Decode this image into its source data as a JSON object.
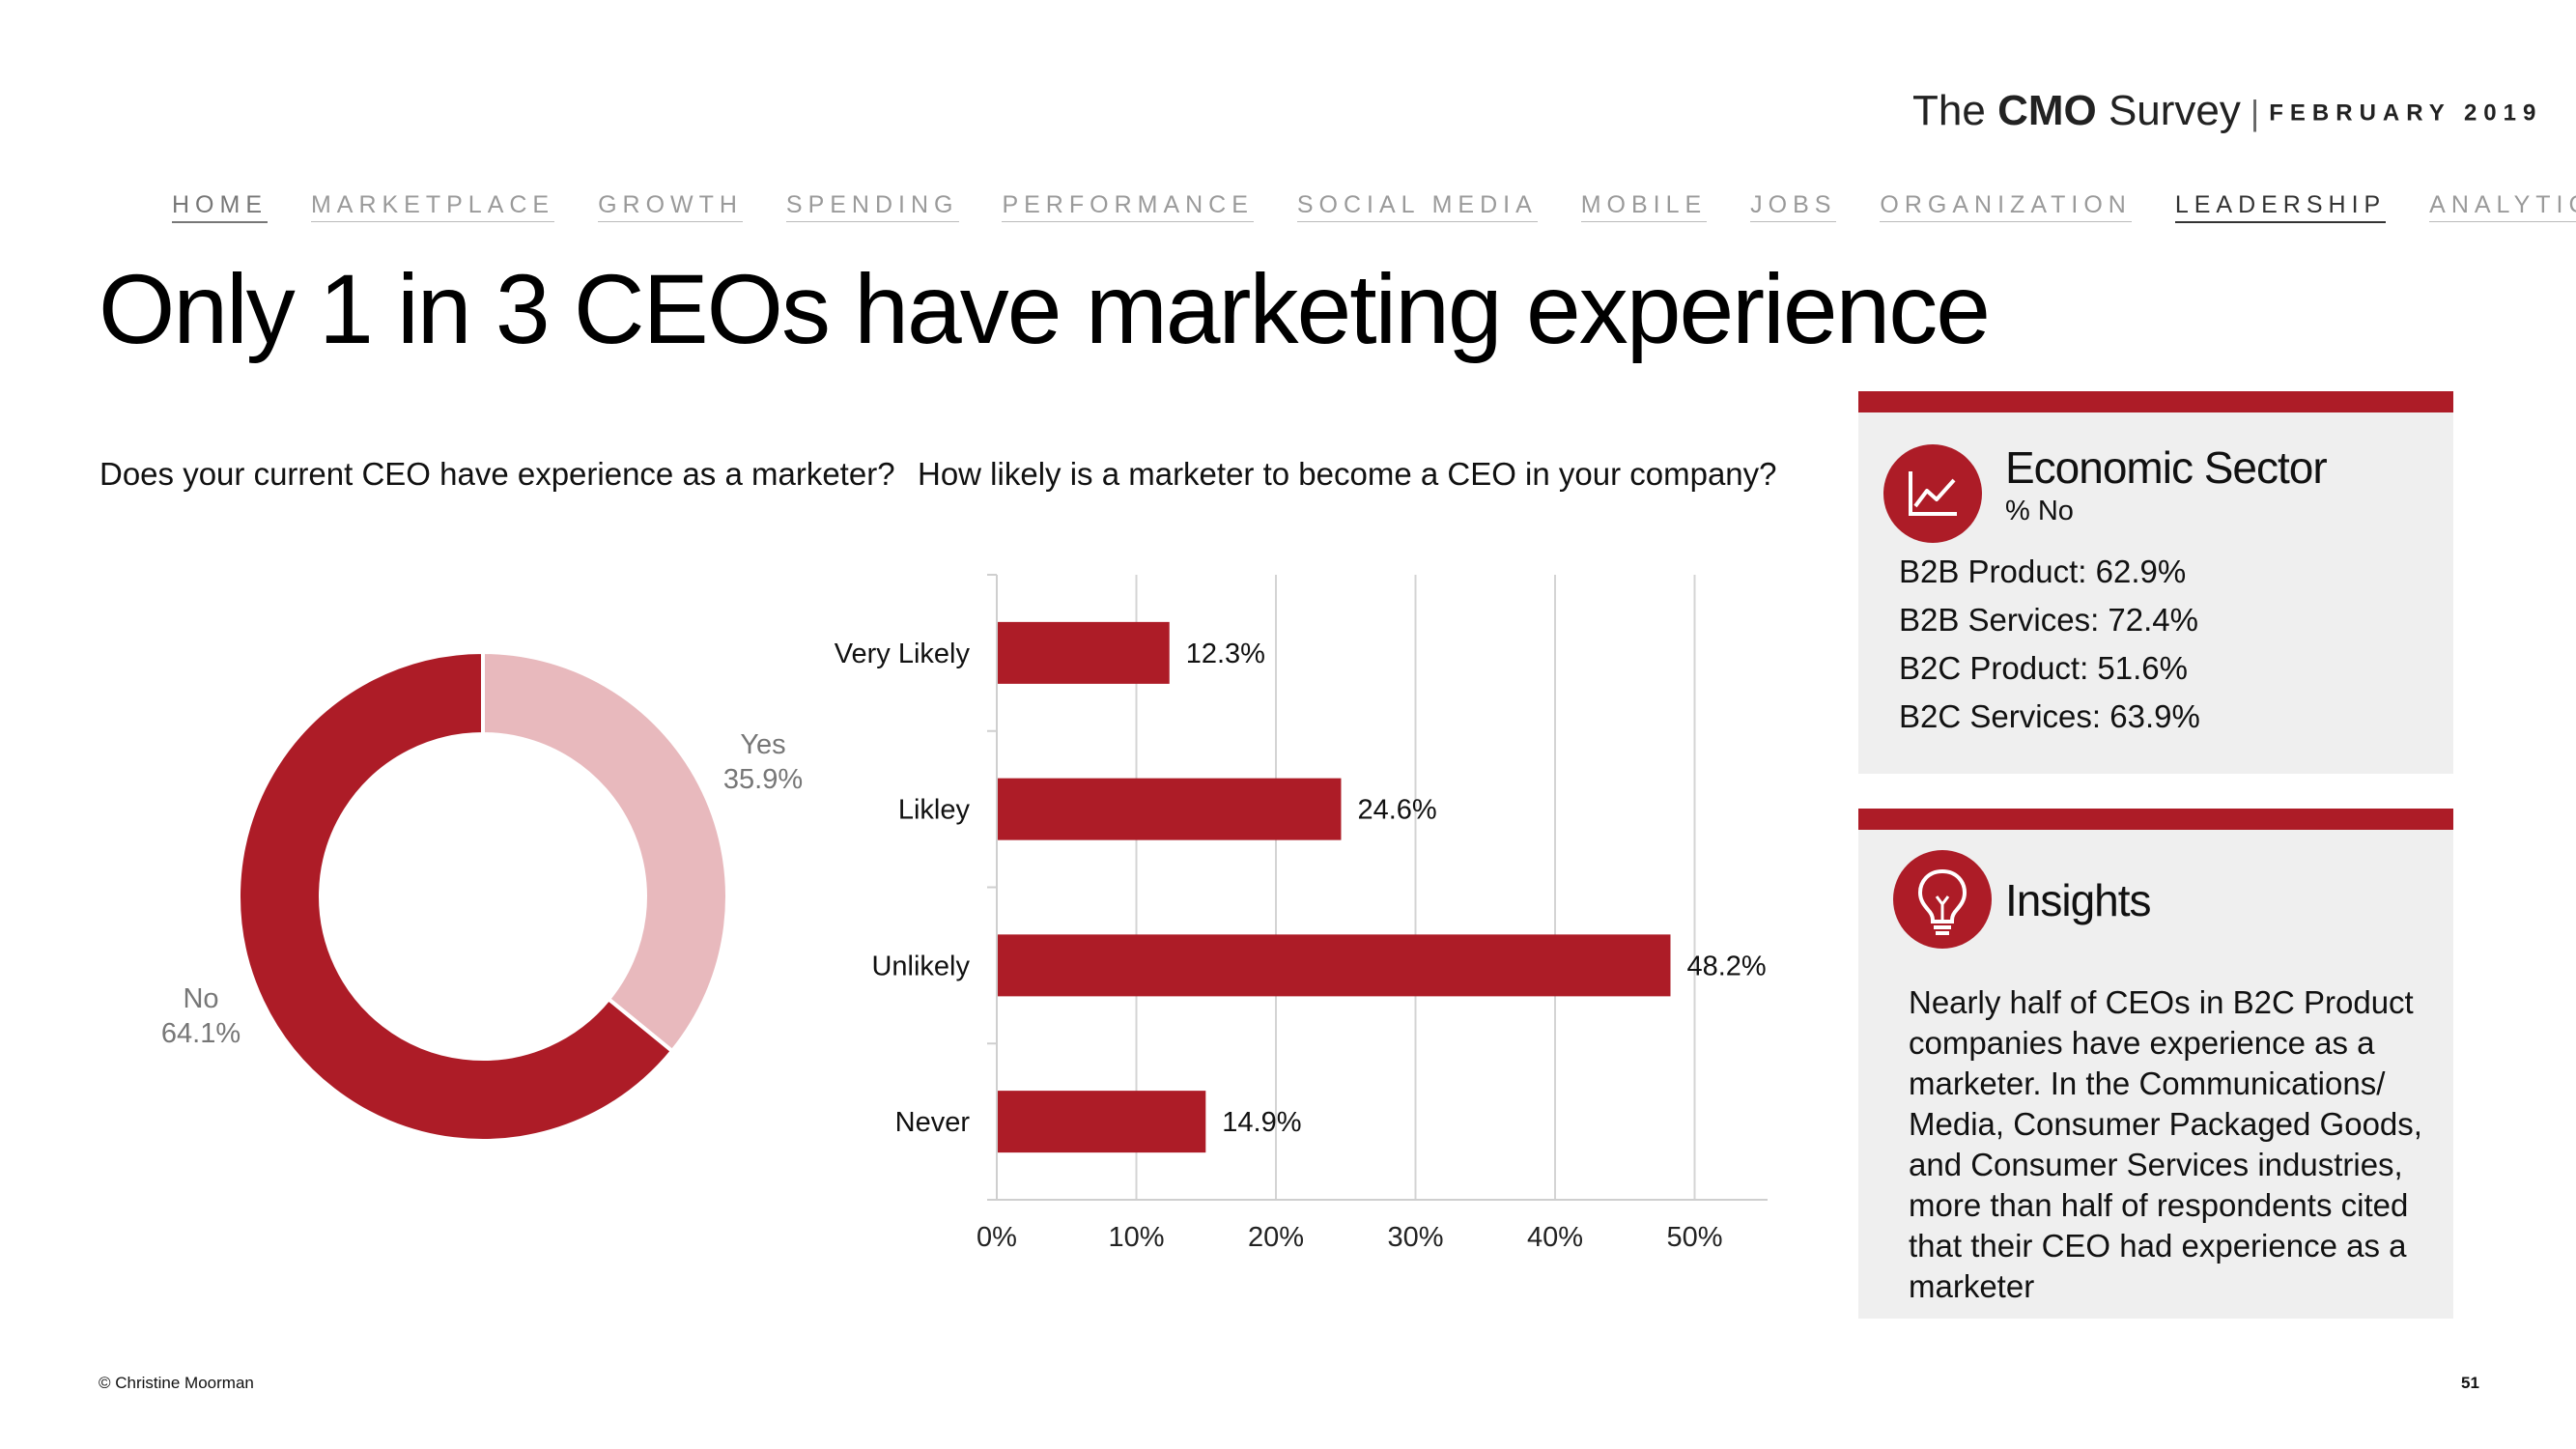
{
  "brand": {
    "the": "The",
    "cmo": "CMO",
    "survey": "Survey",
    "separator": "|",
    "date": "FEBRUARY 2019"
  },
  "nav": {
    "items": [
      {
        "label": "HOME"
      },
      {
        "label": "MARKETPLACE"
      },
      {
        "label": "GROWTH"
      },
      {
        "label": "SPENDING"
      },
      {
        "label": "PERFORMANCE"
      },
      {
        "label": "SOCIAL MEDIA"
      },
      {
        "label": "MOBILE"
      },
      {
        "label": "JOBS"
      },
      {
        "label": "ORGANIZATION"
      },
      {
        "label": "LEADERSHIP"
      },
      {
        "label": "ANALYTICS"
      }
    ],
    "active": "LEADERSHIP"
  },
  "title": "Only 1 in 3 CEOs have marketing experience",
  "questions": {
    "donut": "Does your current CEO have experience as a marketer?",
    "bars": "How likely is a marketer to become a CEO in your company?"
  },
  "chart_data": [
    {
      "type": "pie",
      "style": "donut",
      "title": "Does your current CEO have experience as a marketer?",
      "slices": [
        {
          "label": "Yes",
          "value": 35.9,
          "value_label": "35.9%",
          "color": "#e8b9bd"
        },
        {
          "label": "No",
          "value": 64.1,
          "value_label": "64.1%",
          "color": "#ad1c27"
        }
      ]
    },
    {
      "type": "bar",
      "orientation": "horizontal",
      "title": "How likely is a marketer to become a CEO in your company?",
      "categories": [
        "Very Likely",
        "Likley",
        "Unlikely",
        "Never"
      ],
      "values": [
        12.3,
        24.6,
        48.2,
        14.9
      ],
      "value_labels": [
        "12.3%",
        "24.6%",
        "48.2%",
        "14.9%"
      ],
      "xticks": [
        0,
        10,
        20,
        30,
        40,
        50
      ],
      "xtick_labels": [
        "0%",
        "10%",
        "20%",
        "30%",
        "40%",
        "50%"
      ],
      "xlim": [
        0,
        55
      ],
      "grid": true,
      "color": "#ad1c27"
    }
  ],
  "sector_panel": {
    "icon": "line-chart-icon",
    "title": "Economic Sector",
    "subtitle": "% No",
    "items": [
      {
        "label": "B2B Product: 62.9%"
      },
      {
        "label": "B2B Services: 72.4%"
      },
      {
        "label": "B2C Product: 51.6%"
      },
      {
        "label": "B2C Services:  63.9%"
      }
    ]
  },
  "insights_panel": {
    "icon": "lightbulb-icon",
    "title": "Insights",
    "text": "Nearly half of CEOs in B2C Product companies have experience as a marketer. In the Communications/ Media, Consumer Packaged Goods, and Consumer Services industries, more than half of respondents cited that their CEO had experience as a marketer"
  },
  "footer": {
    "copyright": "© Christine Moorman",
    "page": "51"
  },
  "colors": {
    "accent": "#ad1c27",
    "accent_light": "#e8b9bd",
    "panel_bg": "#efefef"
  }
}
